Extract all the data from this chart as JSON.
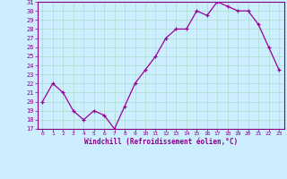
{
  "x": [
    0,
    1,
    2,
    3,
    4,
    5,
    6,
    7,
    8,
    9,
    10,
    11,
    12,
    13,
    14,
    15,
    16,
    17,
    18,
    19,
    20,
    21,
    22,
    23
  ],
  "y": [
    20.0,
    22.0,
    21.0,
    19.0,
    18.0,
    19.0,
    18.5,
    17.0,
    19.5,
    22.0,
    23.5,
    25.0,
    27.0,
    28.0,
    28.0,
    30.0,
    29.5,
    31.0,
    30.5,
    30.0,
    30.0,
    28.5,
    26.0,
    23.5
  ],
  "xlabel": "Windchill (Refroidissement éolien,°C)",
  "ylim_min": 17,
  "ylim_max": 31,
  "yticks": [
    17,
    18,
    19,
    20,
    21,
    22,
    23,
    24,
    25,
    26,
    27,
    28,
    29,
    30,
    31
  ],
  "xticks": [
    0,
    1,
    2,
    3,
    4,
    5,
    6,
    7,
    8,
    9,
    10,
    11,
    12,
    13,
    14,
    15,
    16,
    17,
    18,
    19,
    20,
    21,
    22,
    23
  ],
  "line_color": "#990099",
  "marker_color": "#990099",
  "bg_color": "#cceeff",
  "grid_color": "#aaddcc",
  "tick_color": "#880088",
  "label_color": "#880088",
  "spine_color": "#880088"
}
